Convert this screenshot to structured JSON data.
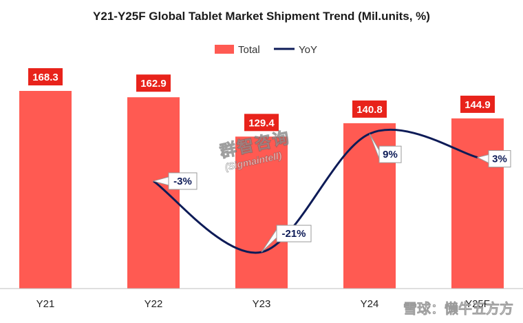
{
  "chart_data": {
    "type": "bar",
    "title": "Y21-Y25F Global Tablet Market Shipment Trend (Mil.units, %)",
    "categories": [
      "Y21",
      "Y22",
      "Y23",
      "Y24",
      "Y25F"
    ],
    "series": [
      {
        "name": "Total",
        "kind": "bar",
        "values": [
          168.3,
          162.9,
          129.4,
          140.8,
          144.9
        ],
        "labels": [
          "168.3",
          "162.9",
          "129.4",
          "140.8",
          "144.9"
        ]
      },
      {
        "name": "YoY",
        "kind": "line",
        "values": [
          null,
          -3,
          -21,
          9,
          3
        ],
        "labels": [
          "",
          "-3%",
          "-21%",
          "9%",
          "3%"
        ]
      }
    ],
    "legend": [
      "Total",
      "YoY"
    ],
    "legend_position": "top",
    "ylim": [
      0,
      190
    ],
    "yoy_range": [
      -25,
      12
    ],
    "colors": {
      "bar": "#FF5A52",
      "line": "#0D1B57",
      "label_bg": "#E8231B",
      "axis": "#bfbfbf"
    }
  },
  "watermark": {
    "cn": "群智咨询",
    "en": "(Sigmaintell)"
  },
  "footer_watermark": "雪球：懒牛五方方"
}
